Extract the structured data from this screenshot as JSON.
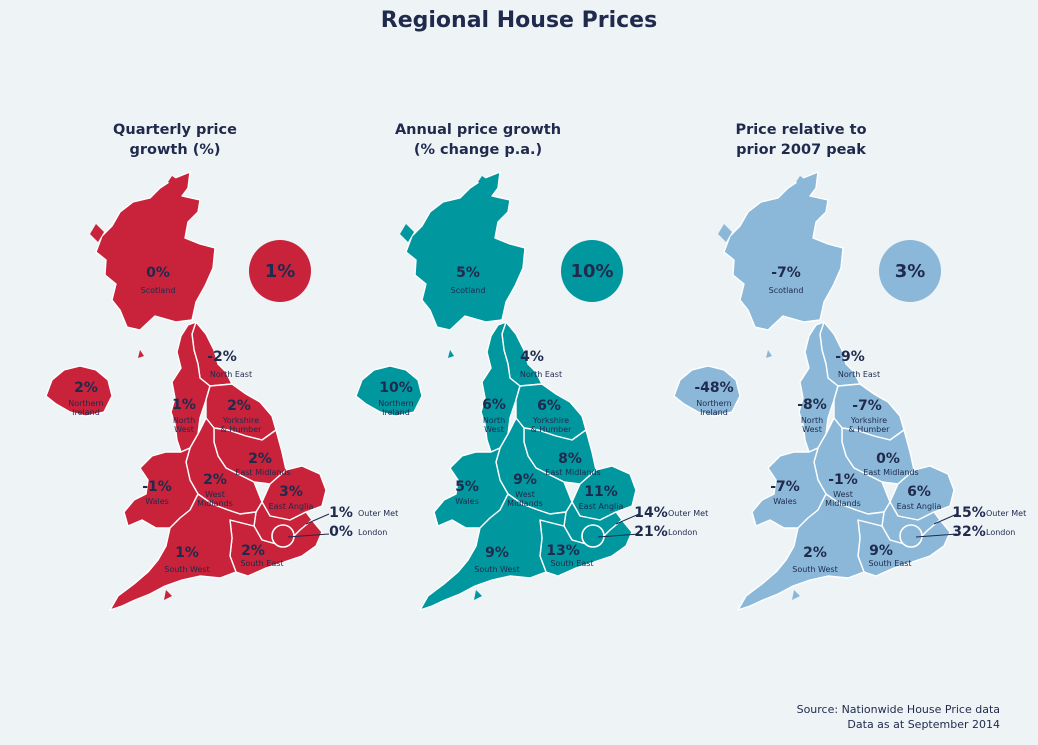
{
  "title": "Regional House Prices",
  "source": [
    "Source: Nationwide House Price data",
    "Data as at September 2014"
  ],
  "maps": [
    {
      "title_lines": [
        "Quarterly price",
        "growth (%)"
      ],
      "overall": "1%",
      "color": "#c8233a",
      "regions": {
        "scotland": "0%",
        "northern_ireland": "2%",
        "north_east": "-2%",
        "north_west": "1%",
        "yorkshire": "2%",
        "east_midlands": "2%",
        "wales": "-1%",
        "west_midlands": "2%",
        "east_anglia": "3%",
        "outer_met": "1%",
        "london": "0%",
        "south_west": "1%",
        "south_east": "2%"
      }
    },
    {
      "title_lines": [
        "Annual price growth",
        "(% change p.a.)"
      ],
      "overall": "10%",
      "color": "#00979f",
      "regions": {
        "scotland": "5%",
        "northern_ireland": "10%",
        "north_east": "4%",
        "north_west": "6%",
        "yorkshire": "6%",
        "east_midlands": "8%",
        "wales": "5%",
        "west_midlands": "9%",
        "east_anglia": "11%",
        "outer_met": "14%",
        "london": "21%",
        "south_west": "9%",
        "south_east": "13%"
      }
    },
    {
      "title_lines": [
        "Price relative to",
        "prior 2007 peak"
      ],
      "overall": "3%",
      "color": "#8bb8d8",
      "regions": {
        "scotland": "-7%",
        "northern_ireland": "-48%",
        "north_east": "-9%",
        "north_west": "-8%",
        "yorkshire": "-7%",
        "east_midlands": "0%",
        "wales": "-7%",
        "west_midlands": "-1%",
        "east_anglia": "6%",
        "outer_met": "15%",
        "london": "32%",
        "south_west": "2%",
        "south_east": "9%"
      }
    }
  ],
  "labels": {
    "scotland": [
      "Scotland"
    ],
    "northern_ireland": [
      "Northern",
      "Ireland"
    ],
    "north_east": [
      "North East"
    ],
    "north_west": [
      "North",
      "West"
    ],
    "yorkshire": [
      "Yorkshire",
      "& Humber"
    ],
    "east_midlands": [
      "East Midlands"
    ],
    "wales": [
      "Wales"
    ],
    "west_midlands": [
      "West",
      "Midlands"
    ],
    "east_anglia": [
      "East Anglia"
    ],
    "outer_met": [
      "Outer Met"
    ],
    "london": [
      "London"
    ],
    "south_west": [
      "South West"
    ],
    "south_east": [
      "South East"
    ]
  }
}
